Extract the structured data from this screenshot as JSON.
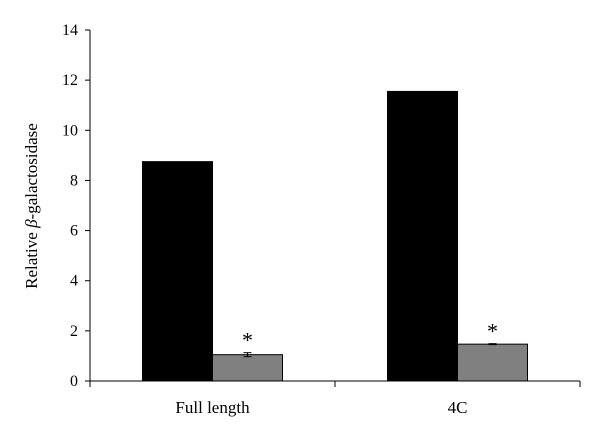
{
  "chart_data": {
    "type": "bar",
    "categories": [
      "Full length",
      "4C"
    ],
    "series": [
      {
        "values": [
          8.75,
          11.55
        ],
        "errors": [
          0.0,
          0.0
        ],
        "color": "#000000"
      },
      {
        "values": [
          1.05,
          1.47
        ],
        "errors": [
          0.08,
          0.02
        ],
        "color": "#808080"
      }
    ],
    "annotations": [
      "*",
      "*"
    ],
    "ylabel_prefix": "Relative ",
    "ylabel_symbol": "β",
    "ylabel_suffix": "-galactosidase",
    "ylim": [
      0,
      14
    ],
    "yticks": [
      0,
      2,
      4,
      6,
      8,
      10,
      12,
      14
    ],
    "grid": false,
    "legend": "none"
  }
}
